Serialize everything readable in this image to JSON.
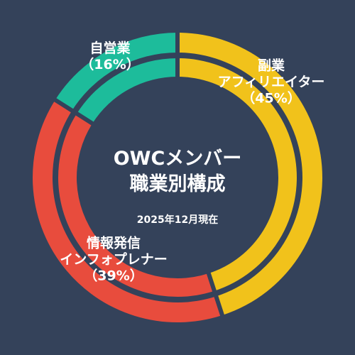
{
  "chart_data": {
    "type": "pie",
    "title_lines": [
      "OWCメンバー",
      "職業別構成"
    ],
    "subtitle": "2025年12月現在",
    "categories": [
      "副業アフィリエイター",
      "情報発信インフォプレナー",
      "自営業"
    ],
    "values": [
      45,
      39,
      16
    ],
    "unit": "%",
    "labels": [
      {
        "lines": [
          "副業",
          "アフィリエイター",
          "（45%）"
        ]
      },
      {
        "lines": [
          "情報発信",
          "インフォプレナー",
          "（39%）"
        ]
      },
      {
        "lines": [
          "自営業",
          "（16%）"
        ]
      }
    ],
    "colors": [
      "#f1c21b",
      "#e84c3d",
      "#1dbc9b"
    ],
    "background": "#34425a",
    "start_angle": "top, clockwise"
  }
}
